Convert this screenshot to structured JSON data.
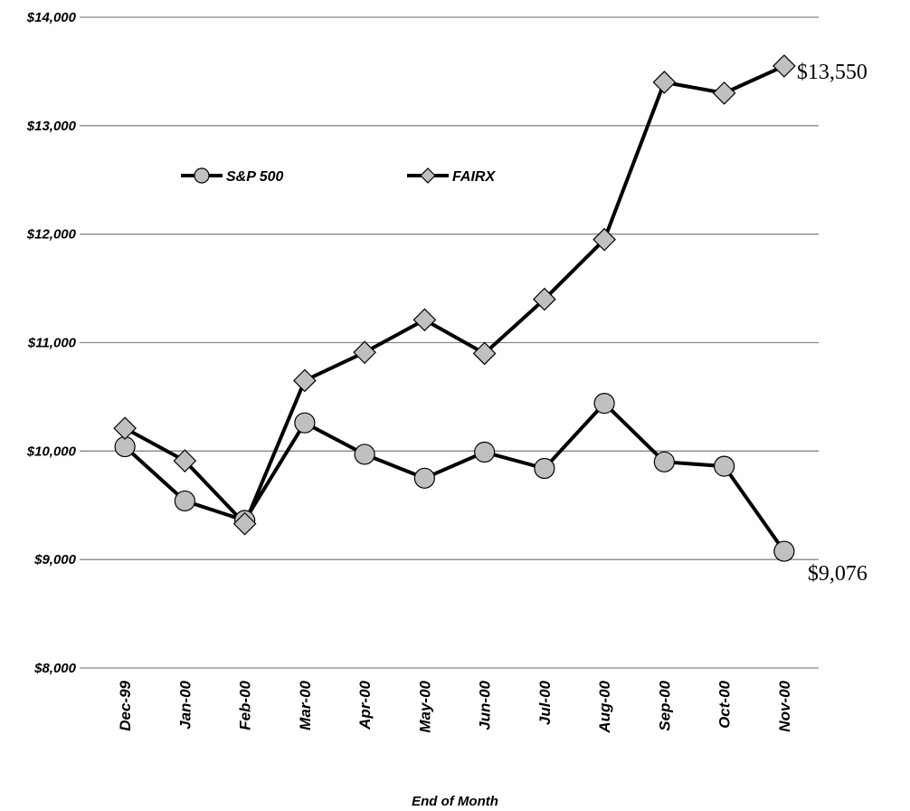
{
  "chart_data": {
    "type": "line",
    "x_label": "End of Month",
    "categories": [
      "Dec-99",
      "Jan-00",
      "Feb-00",
      "Mar-00",
      "Apr-00",
      "May-00",
      "Jun-00",
      "Jul-00",
      "Aug-00",
      "Sep-00",
      "Oct-00",
      "Nov-00"
    ],
    "series": [
      {
        "name": "S&P 500",
        "color": "#c0c0c0",
        "marker": "circle",
        "values": [
          10040,
          9540,
          9360,
          10260,
          9970,
          9750,
          9990,
          9840,
          10440,
          9900,
          9860,
          9076
        ],
        "value_labels": [
          null,
          null,
          null,
          null,
          null,
          null,
          null,
          null,
          null,
          null,
          null,
          "$9,076"
        ]
      },
      {
        "name": "FAIRX",
        "color": "#c0c0c0",
        "marker": "diamond",
        "values": [
          10210,
          9910,
          9330,
          10650,
          10910,
          11210,
          10900,
          11400,
          11950,
          13400,
          13300,
          13550
        ],
        "value_labels": [
          null,
          null,
          null,
          null,
          null,
          null,
          null,
          null,
          null,
          null,
          null,
          "$13,550"
        ]
      }
    ],
    "ylim": [
      8000,
      14000
    ],
    "yticks": [
      {
        "value": 8000,
        "label": "$8,000"
      },
      {
        "value": 9000,
        "label": "$9,000"
      },
      {
        "value": 10000,
        "label": "$10,000"
      },
      {
        "value": 11000,
        "label": "$11,000"
      },
      {
        "value": 12000,
        "label": "$12,000"
      },
      {
        "value": 13000,
        "label": "$13,000"
      },
      {
        "value": 14000,
        "label": "$14,000"
      }
    ],
    "grid": true,
    "legend": "top-left"
  }
}
